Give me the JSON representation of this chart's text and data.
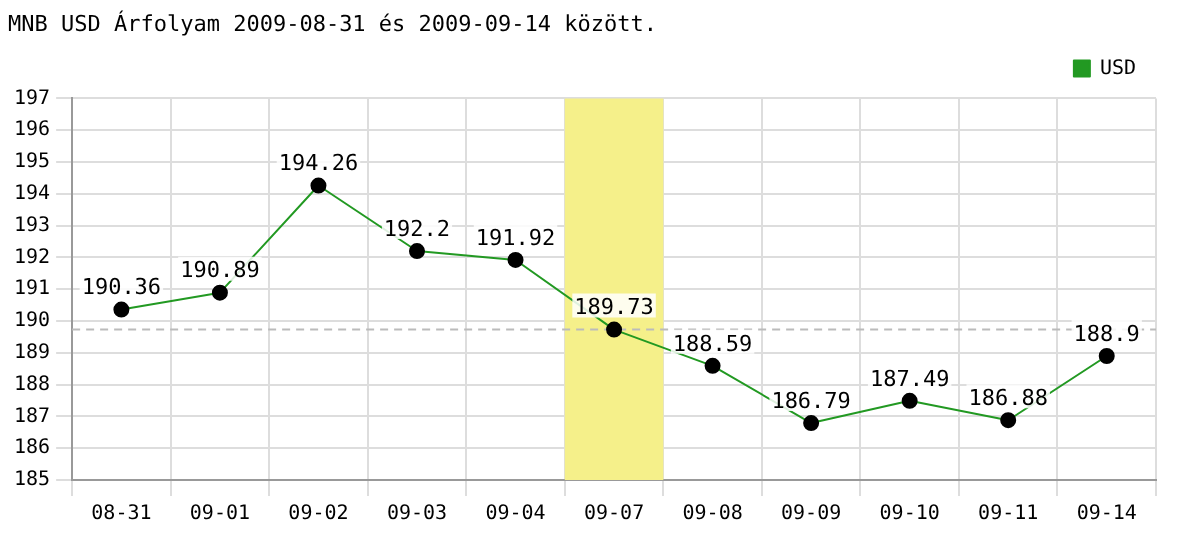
{
  "chart_data": {
    "type": "line",
    "title": "MNB USD Árfolyam 2009-08-31 és 2009-09-14 között.",
    "categories": [
      "08-31",
      "09-01",
      "09-02",
      "09-03",
      "09-04",
      "09-07",
      "09-08",
      "09-09",
      "09-10",
      "09-11",
      "09-14"
    ],
    "series": [
      {
        "name": "USD",
        "color": "#229922",
        "values": [
          190.36,
          190.89,
          194.26,
          192.2,
          191.92,
          189.73,
          188.59,
          186.79,
          187.49,
          186.88,
          188.9
        ]
      }
    ],
    "ylim": [
      185,
      197
    ],
    "yticks": [
      185,
      186,
      187,
      188,
      189,
      190,
      191,
      192,
      193,
      194,
      195,
      196,
      197
    ],
    "grid": true,
    "legend": "top right",
    "marker": "circle",
    "line_style": "solid",
    "data_labels": true,
    "ref_lines": [
      {
        "axis": "y",
        "value": 189.73,
        "color": "#bbbbbb",
        "line_style": "dashed"
      }
    ],
    "bands": [
      {
        "axis": "x",
        "from": "09-07",
        "to": "09-07",
        "color": "#f5f08a"
      }
    ]
  }
}
